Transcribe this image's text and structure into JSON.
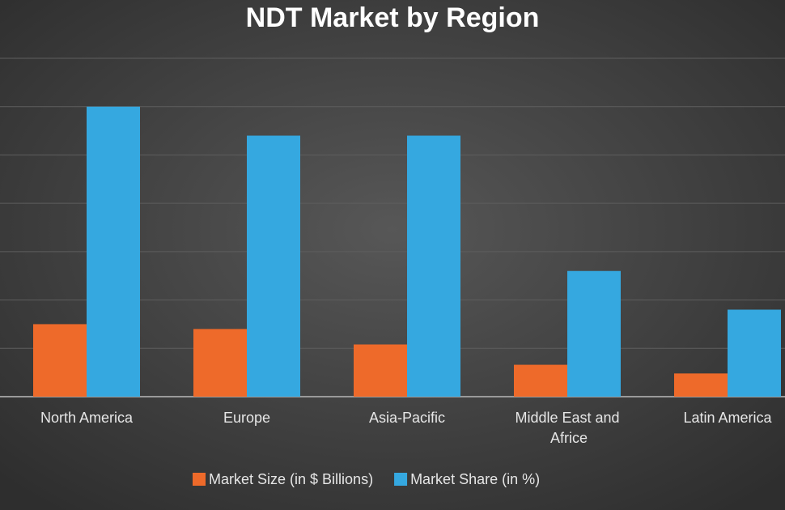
{
  "chart_data": {
    "type": "bar",
    "title": "NDT Market  by Region",
    "categories": [
      "North America",
      "Europe",
      "Asia-Pacific",
      "Middle East and Africe",
      "Latin America"
    ],
    "series": [
      {
        "name": "Market Size (in $ Billions)",
        "color": "#ee6a2a",
        "values": [
          7.5,
          7,
          5.4,
          3.3,
          2.4
        ]
      },
      {
        "name": "Market Share (in %)",
        "color": "#35a8e0",
        "values": [
          30,
          27,
          27,
          13,
          9
        ]
      }
    ],
    "ylim": [
      0,
      35
    ],
    "yticks": [
      0,
      5,
      10,
      15,
      20,
      25,
      30,
      35
    ],
    "grid": true,
    "ytick_labels": false,
    "legend": "bottom"
  }
}
